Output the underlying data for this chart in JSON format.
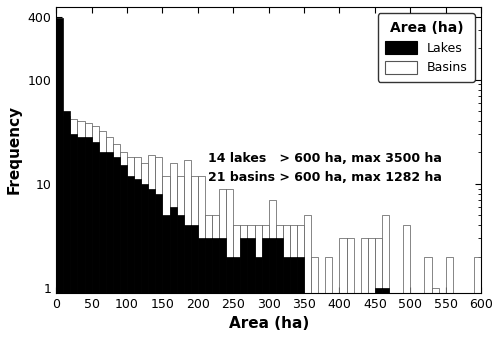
{
  "xlabel": "Area (ha)",
  "ylabel": "Frequency",
  "legend_title": "Area (ha)",
  "legend_labels": [
    "Lakes",
    "Basins"
  ],
  "annotation": "14 lakes   > 600 ha, max 3500 ha\n21 basins > 600 ha, max 1282 ha",
  "bin_width": 10,
  "xlim": [
    0,
    600
  ],
  "ylim": [
    0.9,
    500
  ],
  "bar_color_lakes": "#000000",
  "bar_color_basins": "#ffffff",
  "bar_edge_lakes": "#000000",
  "bar_edge_basins": "#555555",
  "background_color": "#ffffff",
  "fontsize_labels": 11,
  "fontsize_ticks": 9,
  "fontsize_annotation": 9,
  "fontsize_legend_title": 10,
  "fontsize_legend": 9,
  "lakes_freq": [
    390,
    50,
    30,
    28,
    28,
    25,
    20,
    20,
    18,
    15,
    12,
    11,
    10,
    9,
    8,
    5,
    6,
    5,
    4,
    4,
    3,
    3,
    3,
    3,
    2,
    2,
    3,
    3,
    2,
    3,
    3,
    3,
    2,
    2,
    2,
    0,
    0,
    0,
    0,
    0,
    0,
    0,
    0,
    0,
    0,
    1,
    1,
    0,
    0,
    0,
    0,
    0,
    0,
    0,
    0,
    0,
    0,
    0,
    0,
    0
  ],
  "basins_freq": [
    20,
    45,
    42,
    40,
    38,
    36,
    32,
    28,
    24,
    20,
    18,
    18,
    16,
    19,
    18,
    12,
    16,
    12,
    17,
    12,
    12,
    5,
    5,
    9,
    9,
    4,
    4,
    4,
    4,
    4,
    7,
    4,
    4,
    4,
    4,
    5,
    2,
    0,
    2,
    0,
    3,
    3,
    0,
    3,
    3,
    3,
    5,
    0,
    0,
    4,
    0,
    0,
    2,
    1,
    0,
    2,
    0,
    0,
    0,
    2
  ]
}
